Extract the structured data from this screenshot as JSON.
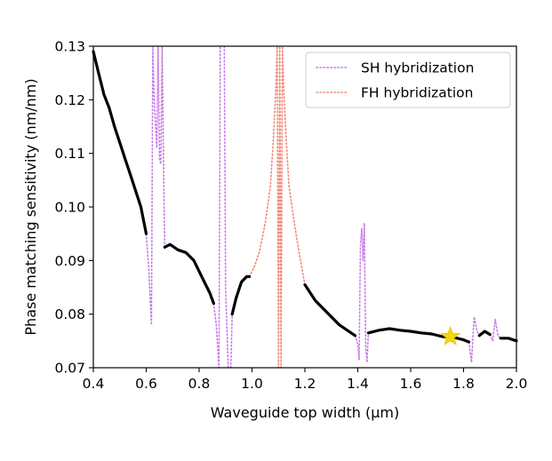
{
  "chart_data": {
    "type": "line",
    "xlabel": "Waveguide top width (μm)",
    "ylabel": "Phase matching sensitivity (nm/nm)",
    "xlim": [
      0.4,
      2.0
    ],
    "ylim": [
      0.07,
      0.13
    ],
    "x_ticks": [
      "0.4",
      "0.6",
      "0.8",
      "1.0",
      "1.2",
      "1.4",
      "1.6",
      "1.8",
      "2.0"
    ],
    "y_ticks": [
      "0.07",
      "0.08",
      "0.09",
      "0.10",
      "0.11",
      "0.12",
      "0.13"
    ],
    "legend_position": "top-right",
    "legend": [
      {
        "label": "SH hybridization",
        "color": "#c77be6",
        "style": "dotted"
      },
      {
        "label": "FH hybridization",
        "color": "#f08a78",
        "style": "dotted"
      }
    ],
    "series": [
      {
        "role": "sensitivity",
        "color": "#000000",
        "segments": [
          [
            [
              0.4,
              0.129
            ],
            [
              0.42,
              0.125
            ],
            [
              0.44,
              0.121
            ],
            [
              0.46,
              0.1185
            ],
            [
              0.48,
              0.115
            ],
            [
              0.5,
              0.112
            ],
            [
              0.52,
              0.109
            ],
            [
              0.54,
              0.106
            ],
            [
              0.56,
              0.103
            ],
            [
              0.58,
              0.1
            ],
            [
              0.6,
              0.095
            ]
          ],
          [
            [
              0.67,
              0.0925
            ],
            [
              0.69,
              0.093
            ],
            [
              0.72,
              0.092
            ],
            [
              0.75,
              0.0915
            ],
            [
              0.78,
              0.09
            ],
            [
              0.8,
              0.088
            ],
            [
              0.82,
              0.086
            ],
            [
              0.84,
              0.084
            ],
            [
              0.855,
              0.082
            ]
          ],
          [
            [
              0.925,
              0.08
            ],
            [
              0.94,
              0.083
            ],
            [
              0.96,
              0.086
            ],
            [
              0.98,
              0.087
            ],
            [
              0.99,
              0.087
            ]
          ],
          [
            [
              1.2,
              0.0855
            ],
            [
              1.22,
              0.084
            ],
            [
              1.24,
              0.0825
            ],
            [
              1.27,
              0.081
            ],
            [
              1.3,
              0.0795
            ],
            [
              1.33,
              0.078
            ],
            [
              1.36,
              0.077
            ],
            [
              1.39,
              0.076
            ]
          ],
          [
            [
              1.44,
              0.0765
            ],
            [
              1.48,
              0.077
            ],
            [
              1.52,
              0.0773
            ],
            [
              1.56,
              0.077
            ],
            [
              1.6,
              0.0768
            ],
            [
              1.64,
              0.0765
            ],
            [
              1.68,
              0.0763
            ],
            [
              1.72,
              0.0758
            ],
            [
              1.76,
              0.0757
            ],
            [
              1.8,
              0.0752
            ],
            [
              1.82,
              0.0748
            ]
          ],
          [
            [
              1.86,
              0.076
            ],
            [
              1.88,
              0.0768
            ],
            [
              1.9,
              0.0762
            ]
          ],
          [
            [
              1.94,
              0.0755
            ],
            [
              1.97,
              0.0755
            ],
            [
              2.0,
              0.075
            ]
          ]
        ]
      },
      {
        "name": "SH hybridization",
        "color": "#c77be6",
        "segments": [
          [
            [
              0.6,
              0.095
            ],
            [
              0.61,
              0.088
            ],
            [
              0.62,
              0.078
            ],
            [
              0.625,
              0.13
            ],
            [
              0.63,
              0.12
            ],
            [
              0.64,
              0.111
            ],
            [
              0.645,
              0.13
            ],
            [
              0.65,
              0.109
            ],
            [
              0.655,
              0.108
            ],
            [
              0.66,
              0.13
            ],
            [
              0.665,
              0.11
            ],
            [
              0.67,
              0.0925
            ]
          ],
          [
            [
              0.855,
              0.082
            ],
            [
              0.865,
              0.078
            ],
            [
              0.875,
              0.07
            ],
            [
              0.88,
              0.13
            ]
          ],
          [
            [
              0.895,
              0.13
            ],
            [
              0.9,
              0.085
            ],
            [
              0.91,
              0.07
            ]
          ],
          [
            [
              0.92,
              0.07
            ],
            [
              0.925,
              0.08
            ]
          ],
          [
            [
              1.39,
              0.076
            ],
            [
              1.4,
              0.0745
            ],
            [
              1.405,
              0.0715
            ],
            [
              1.41,
              0.093
            ],
            [
              1.415,
              0.096
            ],
            [
              1.42,
              0.09
            ],
            [
              1.425,
              0.097
            ],
            [
              1.43,
              0.074
            ],
            [
              1.435,
              0.071
            ],
            [
              1.44,
              0.0765
            ]
          ],
          [
            [
              1.82,
              0.0748
            ],
            [
              1.83,
              0.071
            ],
            [
              1.84,
              0.0795
            ],
            [
              1.85,
              0.077
            ],
            [
              1.86,
              0.076
            ]
          ],
          [
            [
              1.9,
              0.0762
            ],
            [
              1.91,
              0.075
            ],
            [
              1.92,
              0.079
            ],
            [
              1.93,
              0.076
            ],
            [
              1.94,
              0.0755
            ]
          ]
        ]
      },
      {
        "name": "FH hybridization",
        "color": "#f08a78",
        "segments": [
          [
            [
              0.99,
              0.087
            ],
            [
              1.01,
              0.089
            ],
            [
              1.03,
              0.092
            ],
            [
              1.05,
              0.097
            ],
            [
              1.07,
              0.104
            ],
            [
              1.08,
              0.112
            ],
            [
              1.09,
              0.122
            ],
            [
              1.095,
              0.13
            ],
            [
              1.1,
              0.07
            ],
            [
              1.105,
              0.13
            ],
            [
              1.11,
              0.07
            ],
            [
              1.115,
              0.13
            ],
            [
              1.12,
              0.122
            ],
            [
              1.13,
              0.112
            ],
            [
              1.14,
              0.104
            ],
            [
              1.16,
              0.097
            ],
            [
              1.18,
              0.091
            ],
            [
              1.2,
              0.0855
            ]
          ]
        ]
      }
    ],
    "marker": {
      "x": 1.75,
      "y": 0.0758,
      "shape": "star",
      "color": "#f5d60a"
    }
  }
}
